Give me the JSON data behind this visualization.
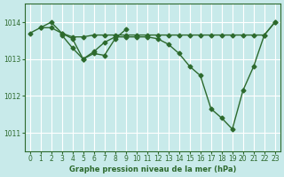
{
  "title": "Graphe pression niveau de la mer (hPa)",
  "bg_color": "#c8eaea",
  "grid_color": "#ffffff",
  "line_color": "#2d6a2d",
  "marker_color": "#2d6a2d",
  "ylim": [
    1010.5,
    1014.5
  ],
  "yticks": [
    1011,
    1012,
    1013,
    1014
  ],
  "xlim": [
    -0.5,
    23.5
  ],
  "xticks": [
    0,
    1,
    2,
    3,
    4,
    5,
    6,
    7,
    8,
    9,
    10,
    11,
    12,
    13,
    14,
    15,
    16,
    17,
    18,
    19,
    20,
    21,
    22,
    23
  ],
  "series": [
    [
      1013.7,
      1013.85,
      1013.85,
      1013.7,
      1013.6,
      1013.6,
      1013.65,
      1013.65,
      1013.65,
      1013.65,
      1013.65,
      1013.65,
      1013.65,
      1013.65,
      1013.65,
      1013.65,
      1013.65,
      1013.65,
      1013.65,
      1013.65,
      1013.65,
      1013.65,
      1013.65,
      1014.0
    ],
    [
      null,
      1013.85,
      1014.0,
      1013.7,
      1013.55,
      1013.0,
      1013.15,
      1013.1,
      1013.55,
      1013.8,
      null,
      null,
      null,
      null,
      null,
      null,
      null,
      null,
      null,
      null,
      null,
      null,
      null,
      null
    ],
    [
      null,
      null,
      null,
      1013.65,
      1013.3,
      1013.0,
      1013.2,
      1013.45,
      1013.6,
      1013.6,
      1013.6,
      1013.6,
      1013.55,
      1013.4,
      1013.15,
      1012.8,
      1012.55,
      1011.65,
      1011.4,
      1011.1,
      1012.15,
      1012.8,
      1013.65,
      1014.0
    ]
  ]
}
